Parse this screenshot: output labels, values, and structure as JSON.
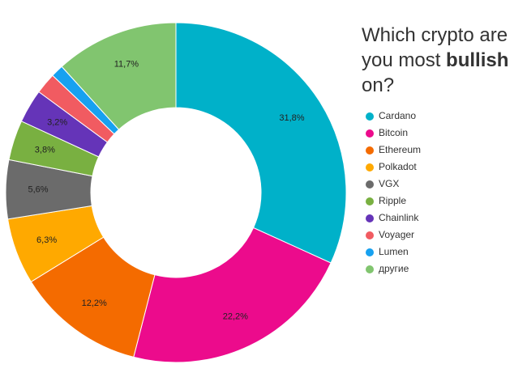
{
  "chart_data": {
    "type": "donut",
    "title": [
      "Which crypto are you most",
      "bullish",
      "on?"
    ],
    "categories": [
      "Cardano",
      "Bitcoin",
      "Ethereum",
      "Polkadot",
      "VGX",
      "Ripple",
      "Chainlink",
      "Voyager",
      "Lumen",
      "другие"
    ],
    "values": [
      31.8,
      22.2,
      12.2,
      6.3,
      5.6,
      3.8,
      3.2,
      2.0,
      1.2,
      11.7
    ],
    "value_labels": [
      "31,8%",
      "22,2%",
      "12,2%",
      "6,3%",
      "5,6%",
      "3,8%",
      "3,2%",
      null,
      null,
      "11,7%"
    ],
    "colors": [
      "#00b1c9",
      "#ec0b8c",
      "#f46b00",
      "#ffa900",
      "#6b6b6b",
      "#79b041",
      "#6534b8",
      "#f15b61",
      "#17a1f0",
      "#81c56f"
    ],
    "legend": "right"
  }
}
